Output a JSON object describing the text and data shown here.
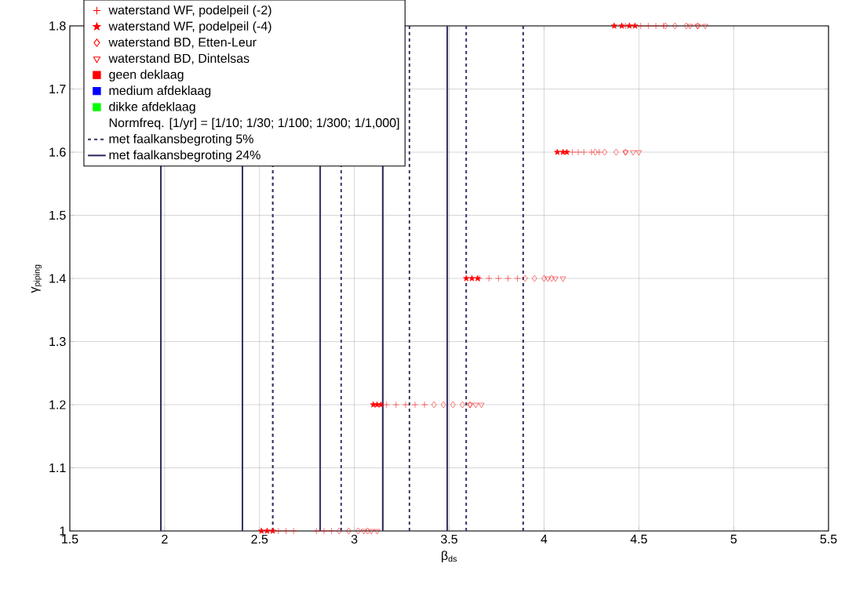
{
  "chart_data": {
    "type": "scatter",
    "xlabel": "β$_{ds}$",
    "ylabel": "γ$_{piping}$",
    "xlim": [
      1.5,
      5.5
    ],
    "ylim": [
      1,
      1.8
    ],
    "xticks": [
      1.5,
      2,
      2.5,
      3,
      3.5,
      4,
      4.5,
      5,
      5.5
    ],
    "yticks": [
      1,
      1.1,
      1.2,
      1.3,
      1.4,
      1.5,
      1.6,
      1.7,
      1.8
    ],
    "grid": true,
    "legend": "top left",
    "annotations": [
      "Normfreq. [1/yr] = [1/10; 1/30; 1/100; 1/300; 1/1,000]"
    ],
    "series": [
      {
        "name": "waterstand WF, podelpeil (-2)",
        "marker": "cross",
        "color": "#ff0000",
        "x": [
          2.6,
          2.64,
          2.68,
          2.8,
          2.84,
          2.88,
          3.17,
          3.22,
          3.27,
          3.32,
          3.37,
          3.66,
          3.71,
          3.76,
          3.81,
          3.86,
          4.15,
          4.18,
          4.21,
          4.25,
          4.29,
          4.43,
          4.51,
          4.55,
          4.59,
          4.63
        ],
        "values": [
          1,
          1,
          1,
          1,
          1,
          1,
          1.2,
          1.2,
          1.2,
          1.2,
          1.2,
          1.4,
          1.4,
          1.4,
          1.4,
          1.4,
          1.6,
          1.6,
          1.6,
          1.6,
          1.6,
          1.8,
          1.8,
          1.8,
          1.8,
          1.8
        ]
      },
      {
        "name": "waterstand WF, podelpeil (-4)",
        "marker": "star",
        "color": "#ff0000",
        "x": [
          2.51,
          2.54,
          2.57,
          3.1,
          3.12,
          3.14,
          3.59,
          3.62,
          3.65,
          4.07,
          4.1,
          4.12,
          4.37,
          4.41,
          4.45,
          4.48
        ],
        "values": [
          1,
          1,
          1,
          1.2,
          1.2,
          1.2,
          1.4,
          1.4,
          1.4,
          1.6,
          1.6,
          1.6,
          1.8,
          1.8,
          1.8,
          1.8
        ]
      },
      {
        "name": "waterstand BD, Etten-Leur",
        "marker": "diamond",
        "color": "#ff0000",
        "x": [
          2.92,
          2.97,
          3.02,
          3.07,
          3.42,
          3.47,
          3.52,
          3.57,
          3.61,
          3.9,
          3.95,
          4.0,
          4.04,
          4.27,
          4.32,
          4.38,
          4.43,
          4.64,
          4.69,
          4.75,
          4.81
        ],
        "values": [
          1,
          1,
          1,
          1,
          1.2,
          1.2,
          1.2,
          1.2,
          1.2,
          1.4,
          1.4,
          1.4,
          1.4,
          1.6,
          1.6,
          1.6,
          1.6,
          1.8,
          1.8,
          1.8,
          1.8
        ]
      },
      {
        "name": "waterstand BD, Dintelsas",
        "marker": "triangle",
        "color": "#ff0000",
        "x": [
          3.05,
          3.09,
          3.12,
          3.61,
          3.64,
          3.67,
          4.02,
          4.06,
          4.1,
          4.43,
          4.47,
          4.5,
          4.77,
          4.81,
          4.85
        ],
        "values": [
          1,
          1,
          1,
          1.2,
          1.2,
          1.2,
          1.4,
          1.4,
          1.4,
          1.6,
          1.6,
          1.6,
          1.8,
          1.8,
          1.8
        ]
      },
      {
        "name": "geen deklaag",
        "marker": "square",
        "color": "#ff0000"
      },
      {
        "name": "medium afdeklaag",
        "marker": "square",
        "color": "#0000ff"
      },
      {
        "name": "dikke afdeklaag",
        "marker": "square",
        "color": "#00ff00"
      }
    ],
    "ref_lines": [
      {
        "axis": "x",
        "value": 2.57,
        "line_style": "dashed",
        "color": "#333366",
        "label": "met faalkansbegroting 5%"
      },
      {
        "axis": "x",
        "value": 2.93,
        "line_style": "dashed",
        "color": "#333366"
      },
      {
        "axis": "x",
        "value": 3.29,
        "line_style": "dashed",
        "color": "#333366"
      },
      {
        "axis": "x",
        "value": 3.59,
        "line_style": "dashed",
        "color": "#333366"
      },
      {
        "axis": "x",
        "value": 3.89,
        "line_style": "dashed",
        "color": "#333366"
      },
      {
        "axis": "x",
        "value": 1.98,
        "line_style": "solid",
        "color": "#333366",
        "label": "met faalkansbegroting 24%"
      },
      {
        "axis": "x",
        "value": 2.41,
        "line_style": "solid",
        "color": "#333366"
      },
      {
        "axis": "x",
        "value": 2.82,
        "line_style": "solid",
        "color": "#333366"
      },
      {
        "axis": "x",
        "value": 3.15,
        "line_style": "solid",
        "color": "#333366"
      },
      {
        "axis": "x",
        "value": 3.49,
        "line_style": "solid",
        "color": "#333366"
      }
    ]
  }
}
